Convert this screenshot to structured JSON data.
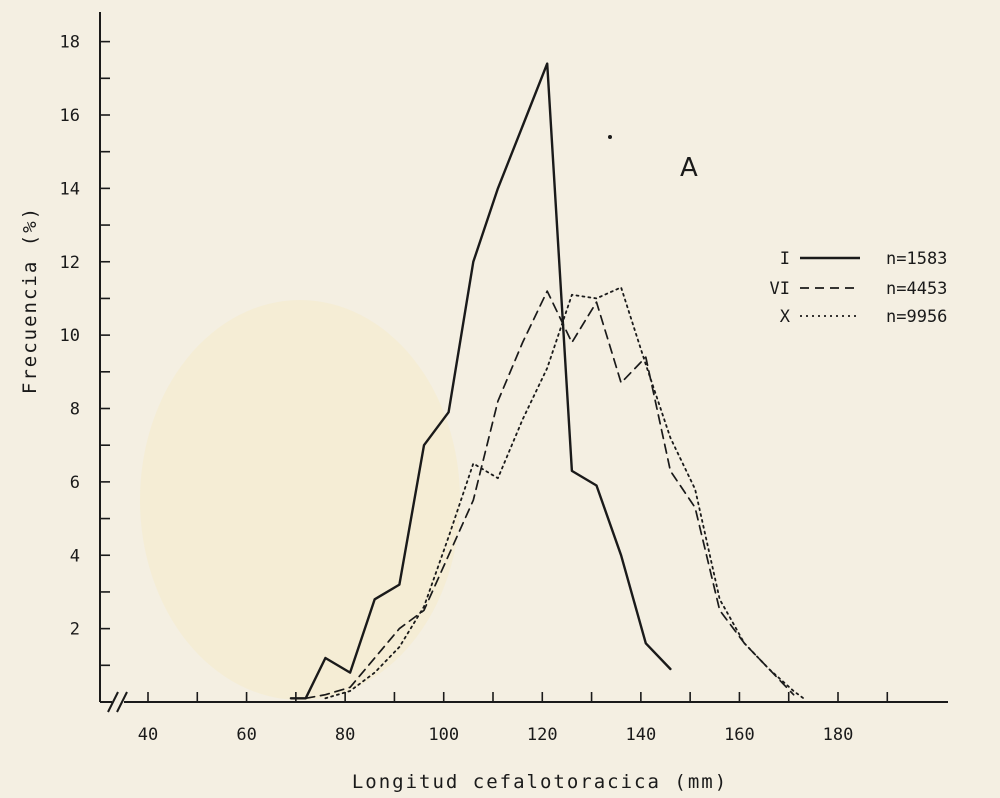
{
  "chart_data": {
    "type": "line",
    "panel_label": "A",
    "xlabel": "Longitud cefalotoracica (mm)",
    "ylabel": "Frecuencia (%)",
    "xlim": [
      30,
      200
    ],
    "ylim": [
      0,
      18
    ],
    "xticks": [
      40,
      60,
      80,
      100,
      120,
      140,
      160,
      180
    ],
    "yticks": [
      2,
      4,
      6,
      8,
      10,
      12,
      14,
      16,
      18
    ],
    "axis_break": "x",
    "grid": false,
    "legend_placement": "right",
    "series": [
      {
        "name": "I",
        "legend_n": "n=1583",
        "style": "solid",
        "color": "#1a1a1a",
        "x": [
          69,
          72,
          76,
          81,
          86,
          91,
          96,
          101,
          106,
          111,
          116,
          121,
          126,
          131,
          136,
          141,
          146
        ],
        "y": [
          0.1,
          0.1,
          1.2,
          0.8,
          2.8,
          3.2,
          7.0,
          7.9,
          12.0,
          14.0,
          15.7,
          17.4,
          6.3,
          5.9,
          4.0,
          1.6,
          0.9
        ]
      },
      {
        "name": "VI",
        "legend_n": "n=4453",
        "style": "dashed",
        "color": "#1a1a1a",
        "x": [
          72,
          76,
          81,
          86,
          91,
          96,
          101,
          106,
          111,
          116,
          121,
          126,
          131,
          136,
          141,
          146,
          151,
          156,
          161,
          166,
          171
        ],
        "y": [
          0.1,
          0.2,
          0.4,
          1.2,
          2.0,
          2.5,
          4.0,
          5.5,
          8.2,
          9.8,
          11.2,
          9.8,
          10.9,
          8.7,
          9.4,
          6.3,
          5.3,
          2.5,
          1.6,
          0.9,
          0.2
        ]
      },
      {
        "name": "X",
        "legend_n": "n=9956",
        "style": "dotted",
        "color": "#1a1a1a",
        "x": [
          76,
          81,
          86,
          91,
          96,
          101,
          106,
          111,
          116,
          121,
          126,
          131,
          136,
          141,
          146,
          151,
          156,
          161,
          166,
          171,
          173
        ],
        "y": [
          0.1,
          0.3,
          0.8,
          1.5,
          2.6,
          4.5,
          6.5,
          6.1,
          7.7,
          9.1,
          11.1,
          11.0,
          11.3,
          9.2,
          7.2,
          5.8,
          2.8,
          1.6,
          0.9,
          0.3,
          0.1
        ]
      }
    ]
  }
}
